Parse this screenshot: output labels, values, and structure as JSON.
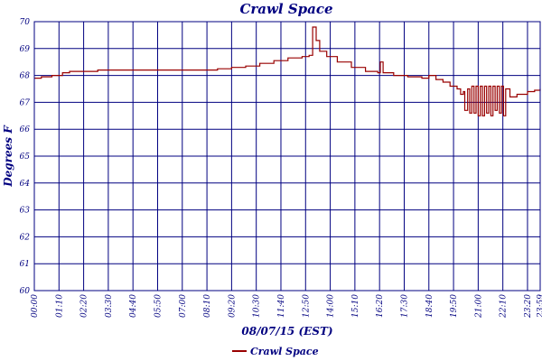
{
  "chart_data": {
    "type": "line",
    "title": "Crawl Space",
    "xlabel": "08/07/15 (EST)",
    "ylabel": "Degrees F",
    "ylim": [
      60,
      70
    ],
    "xlim": [
      0,
      1436
    ],
    "grid": true,
    "legend_placement": "bottom-center",
    "yticks": [
      "60",
      "61",
      "62",
      "63",
      "64",
      "65",
      "66",
      "67",
      "68",
      "69",
      "70"
    ],
    "xticks": [
      "00:00",
      "01:10",
      "02:20",
      "03:30",
      "04:40",
      "05:50",
      "07:00",
      "08:10",
      "09:20",
      "10:30",
      "11:40",
      "12:50",
      "14:00",
      "15:10",
      "16:20",
      "17:30",
      "18:40",
      "19:50",
      "21:00",
      "22:10",
      "23:20",
      "23:59"
    ],
    "xtick_minutes": [
      0,
      70,
      140,
      210,
      280,
      350,
      420,
      490,
      560,
      630,
      700,
      770,
      840,
      910,
      980,
      1050,
      1120,
      1190,
      1260,
      1330,
      1400,
      1439
    ],
    "series": [
      {
        "name": "Crawl Space",
        "color": "#990000",
        "x": [
          0,
          20,
          50,
          80,
          100,
          140,
          180,
          220,
          280,
          350,
          420,
          480,
          520,
          560,
          600,
          640,
          680,
          720,
          760,
          780,
          790,
          800,
          810,
          830,
          860,
          900,
          940,
          975,
          982,
          990,
          1020,
          1060,
          1100,
          1120,
          1140,
          1160,
          1180,
          1200,
          1210,
          1218,
          1222,
          1230,
          1236,
          1242,
          1248,
          1254,
          1260,
          1266,
          1272,
          1278,
          1284,
          1290,
          1296,
          1302,
          1308,
          1314,
          1320,
          1326,
          1332,
          1338,
          1350,
          1370,
          1400,
          1420,
          1436
        ],
        "values": [
          67.9,
          67.95,
          68.0,
          68.1,
          68.15,
          68.15,
          68.2,
          68.2,
          68.2,
          68.2,
          68.2,
          68.2,
          68.25,
          68.3,
          68.35,
          68.45,
          68.55,
          68.65,
          68.7,
          68.75,
          69.8,
          69.3,
          68.9,
          68.7,
          68.5,
          68.3,
          68.15,
          68.1,
          68.5,
          68.1,
          68.0,
          67.95,
          67.9,
          68.0,
          67.85,
          67.75,
          67.6,
          67.5,
          67.3,
          67.4,
          66.7,
          67.5,
          66.6,
          67.6,
          66.6,
          67.6,
          66.5,
          67.6,
          66.5,
          67.6,
          66.6,
          67.6,
          66.5,
          67.6,
          66.7,
          67.6,
          66.6,
          67.6,
          66.5,
          67.5,
          67.2,
          67.3,
          67.4,
          67.45,
          67.5
        ]
      }
    ]
  }
}
